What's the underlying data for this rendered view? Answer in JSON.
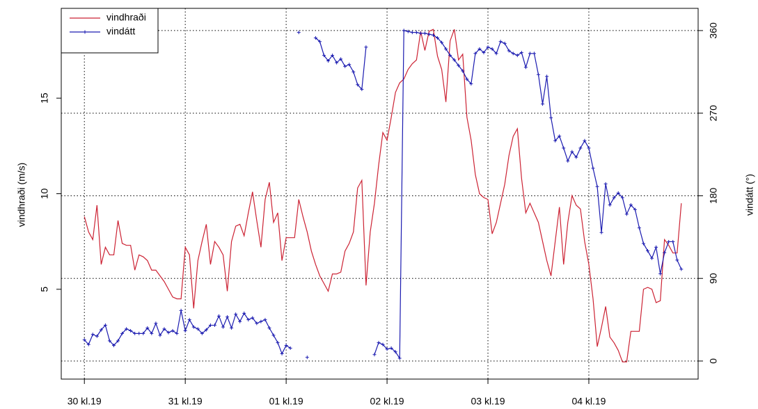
{
  "chart_data": {
    "type": "line",
    "ylabel": "vindhraði (m/s)",
    "y2label": "vindátt (°)",
    "x": [
      0,
      1,
      2,
      3,
      4,
      5,
      6,
      7,
      8,
      9,
      10,
      11,
      12,
      13,
      14,
      15,
      16,
      17,
      18,
      19,
      20,
      21,
      22,
      23,
      24,
      25,
      26,
      27,
      28,
      29,
      30,
      31,
      32,
      33,
      34,
      35,
      36,
      37,
      38,
      39,
      40,
      41,
      42,
      43,
      44,
      45,
      46,
      47,
      48,
      49,
      50,
      51,
      52,
      53,
      54,
      55,
      56,
      57,
      58,
      59,
      60,
      61,
      62,
      63,
      64,
      65,
      66,
      67,
      68,
      69,
      70,
      71,
      72,
      73,
      74,
      75,
      76,
      77,
      78,
      79,
      80,
      81,
      82,
      83,
      84,
      85,
      86,
      87,
      88,
      89,
      90,
      91,
      92,
      93,
      94,
      95,
      96,
      97,
      98,
      99,
      100,
      101,
      102,
      103,
      104,
      105,
      106,
      107,
      108,
      109,
      110,
      111,
      112,
      113,
      114,
      115,
      116,
      117,
      118,
      119,
      120,
      121,
      122,
      123,
      124,
      125,
      126,
      127,
      128,
      129,
      130,
      131,
      132,
      133,
      134,
      135,
      136,
      137,
      138,
      139,
      140,
      141,
      142
    ],
    "xlim": [
      -5.5,
      146
    ],
    "xticks": [
      {
        "value": 0,
        "label": "30 kl.19"
      },
      {
        "value": 24,
        "label": "31 kl.19"
      },
      {
        "value": 48,
        "label": "01 kl.19"
      },
      {
        "value": 72,
        "label": "02 kl.19"
      },
      {
        "value": 96,
        "label": "03 kl.19"
      },
      {
        "value": 120,
        "label": "04 kl.19"
      }
    ],
    "ylim": [
      0.3,
      19.7
    ],
    "yticks": [
      5,
      10,
      15
    ],
    "y2lim": [
      -19.7,
      384.2
    ],
    "y2ticks": [
      0,
      90,
      180,
      270,
      360
    ],
    "grid": true,
    "legend": "top-left",
    "series": [
      {
        "name": "vindhraði",
        "color": "#cc2233",
        "axis": "y",
        "markers": false,
        "values": [
          8.8,
          8.0,
          7.6,
          9.4,
          6.3,
          7.2,
          6.8,
          6.8,
          8.6,
          7.4,
          7.3,
          7.3,
          6.0,
          6.8,
          6.7,
          6.5,
          6.0,
          6.0,
          5.7,
          5.4,
          5.0,
          4.6,
          4.5,
          4.5,
          7.2,
          6.8,
          4.0,
          6.5,
          7.5,
          8.4,
          6.3,
          7.5,
          7.2,
          6.8,
          4.9,
          7.5,
          8.3,
          8.4,
          7.8,
          9.0,
          10.1,
          8.6,
          7.2,
          9.7,
          10.6,
          8.5,
          9.0,
          6.5,
          7.7,
          7.7,
          7.7,
          9.7,
          8.8,
          8.0,
          7.0,
          6.3,
          5.7,
          5.3,
          4.9,
          5.8,
          5.8,
          5.9,
          7.0,
          7.4,
          8.0,
          10.3,
          10.7,
          5.2,
          8.0,
          9.5,
          11.5,
          13.2,
          12.8,
          14.0,
          15.3,
          15.8,
          16.0,
          16.5,
          16.8,
          17.0,
          18.5,
          17.5,
          18.5,
          18.6,
          17.2,
          16.5,
          14.8,
          18.0,
          18.6,
          17.0,
          17.3,
          14.0,
          12.8,
          11.0,
          10.0,
          9.8,
          9.7,
          7.9,
          8.5,
          9.5,
          10.5,
          12.0,
          13.0,
          13.4,
          10.8,
          9.0,
          9.5,
          9.0,
          8.5,
          7.5,
          6.5,
          5.7,
          7.5,
          9.3,
          6.3,
          8.5,
          9.9,
          9.4,
          9.2,
          7.5,
          6.3,
          4.5,
          2.0,
          3.0,
          4.1,
          2.5,
          2.2,
          1.8,
          1.2,
          1.2,
          2.8,
          2.8,
          2.8,
          5.0,
          5.1,
          5.0,
          4.3,
          4.4,
          7.6,
          7.3,
          6.9,
          6.9,
          9.5
        ]
      },
      {
        "name": "vindátt",
        "color": "#1a1ab0",
        "axis": "y2",
        "markers": true,
        "values": [
          23,
          18,
          29,
          27,
          34,
          39,
          22,
          17,
          22,
          30,
          35,
          33,
          30,
          30,
          30,
          36,
          30,
          41,
          28,
          35,
          31,
          33,
          30,
          55,
          33,
          45,
          37,
          35,
          30,
          34,
          39,
          39,
          49,
          37,
          48,
          36,
          51,
          43,
          52,
          45,
          47,
          41,
          43,
          45,
          36,
          28,
          20,
          8,
          17,
          14,
          null,
          358,
          null,
          4,
          null,
          352,
          348,
          333,
          327,
          333,
          325,
          329,
          321,
          323,
          315,
          301,
          296,
          342,
          null,
          7,
          20,
          18,
          13,
          14,
          10,
          3,
          360,
          359,
          358,
          358,
          357,
          357,
          356,
          355,
          352,
          347,
          340,
          333,
          328,
          322,
          316,
          307,
          302,
          335,
          340,
          336,
          342,
          340,
          335,
          348,
          346,
          338,
          335,
          333,
          336,
          320,
          335,
          335,
          312,
          280,
          310,
          265,
          240,
          245,
          232,
          218,
          228,
          222,
          232,
          240,
          232,
          210,
          190,
          140,
          193,
          170,
          178,
          183,
          178,
          160,
          170,
          165,
          145,
          128,
          120,
          112,
          124,
          95,
          118,
          130,
          130,
          110,
          100
        ]
      }
    ]
  }
}
